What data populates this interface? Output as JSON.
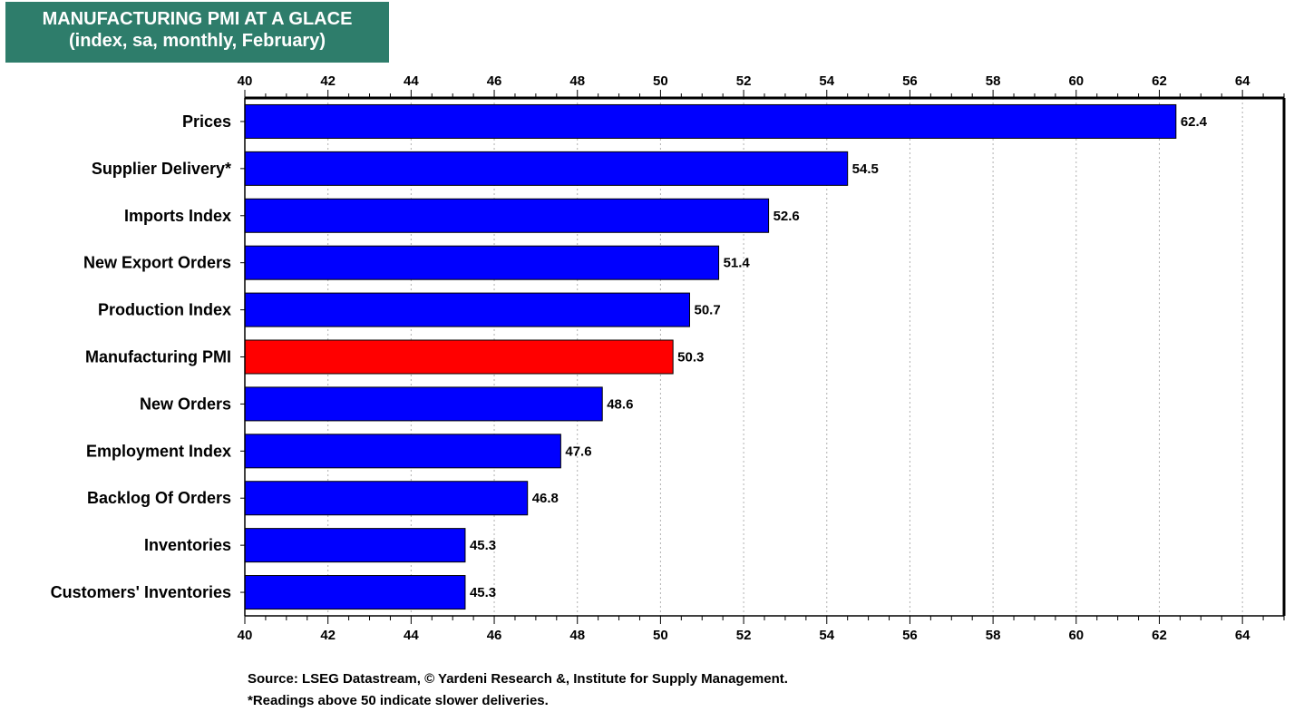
{
  "header": {
    "title": "MANUFACTURING PMI AT A GLACE",
    "subtitle": "(index, sa, monthly, February)",
    "background_color": "#2e7d6b"
  },
  "chart_data": {
    "type": "bar",
    "orientation": "horizontal",
    "categories": [
      "Prices",
      "Supplier Delivery*",
      "Imports Index",
      "New Export Orders",
      "Production Index",
      "Manufacturing PMI",
      "New Orders",
      "Employment Index",
      "Backlog Of Orders",
      "Inventories",
      "Customers' Inventories"
    ],
    "values": [
      62.4,
      54.5,
      52.6,
      51.4,
      50.7,
      50.3,
      48.6,
      47.6,
      46.8,
      45.3,
      45.3
    ],
    "data_labels": [
      "62.4",
      "54.5",
      "52.6",
      "51.4",
      "50.7",
      "50.3",
      "48.6",
      "47.6",
      "46.8",
      "45.3",
      "45.3"
    ],
    "highlight_category": "Manufacturing PMI",
    "bar_color": "#0000ff",
    "highlight_color": "#ff0000",
    "xlim": [
      40,
      65
    ],
    "xticks": [
      40,
      42,
      44,
      46,
      48,
      50,
      52,
      54,
      56,
      58,
      60,
      62,
      64
    ],
    "axis_ticks_top_and_bottom": true,
    "grid": "vertical dotted",
    "legend": "none"
  },
  "footer": {
    "source": "Source: LSEG Datastream, © Yardeni Research &, Institute for Supply Management.",
    "note": "*Readings above 50 indicate slower deliveries."
  }
}
